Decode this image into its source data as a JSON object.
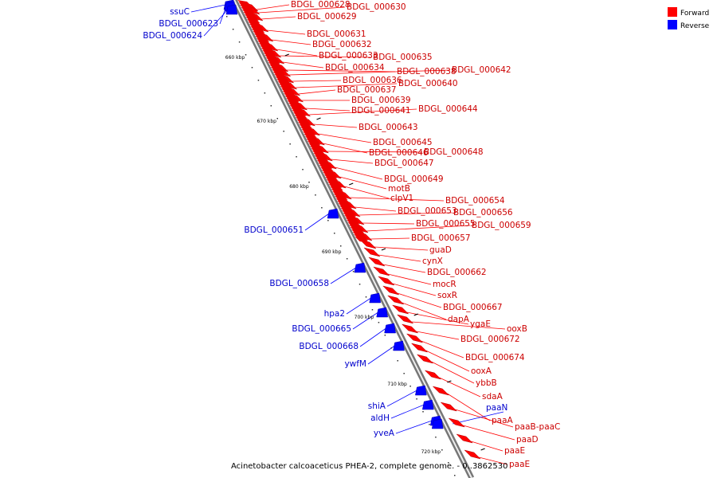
{
  "caption": "Acinetobacter calcoaceticus PHEA-2, complete genome. - 0..3862530",
  "legend": [
    {
      "label": "Forward",
      "color": "#ff0000"
    },
    {
      "label": "Reverse",
      "color": "#0000ff"
    }
  ],
  "ticks": [
    "660 kbp",
    "670 kbp",
    "680 kbp",
    "690 kbp",
    "700 kbp",
    "710 kbp",
    "720 kbp"
  ],
  "forward_labels": [
    "BDGL_000628",
    "BDGL_000630",
    "BDGL_000629",
    "BDGL_000631",
    "BDGL_000632",
    "BDGL_000633",
    "BDGL_000635",
    "BDGL_000634",
    "BDGL_000638",
    "BDGL_000642",
    "BDGL_000636",
    "BDGL_000640",
    "BDGL_000637",
    "BDGL_000639",
    "BDGL_000641",
    "BDGL_000644",
    "BDGL_000643",
    "BDGL_000645",
    "BDGL_000646",
    "BDGL_000648",
    "BDGL_000647",
    "BDGL_000649",
    "motB",
    "clpV1",
    "BDGL_000654",
    "BDGL_000653",
    "BDGL_000656",
    "BDGL_000655",
    "BDGL_000659",
    "BDGL_000657",
    "guaD",
    "cynX",
    "BDGL_000662",
    "mocR",
    "soxR",
    "BDGL_000667",
    "dapA",
    "ygaE",
    "ooxB",
    "BDGL_000672",
    "BDGL_000674",
    "ooxA",
    "ybbB",
    "sdaA",
    "paaA",
    "paaB-paaC",
    "paaD",
    "paaE",
    "paaE"
  ],
  "reverse_labels": [
    "ssuC",
    "BDGL_000623",
    "BDGL_000624",
    "BDGL_000651",
    "BDGL_000658",
    "hpa2",
    "BDGL_000665",
    "BDGL_000668",
    "ywfM",
    "shiA",
    "aldH",
    "yveA",
    "paaN"
  ]
}
